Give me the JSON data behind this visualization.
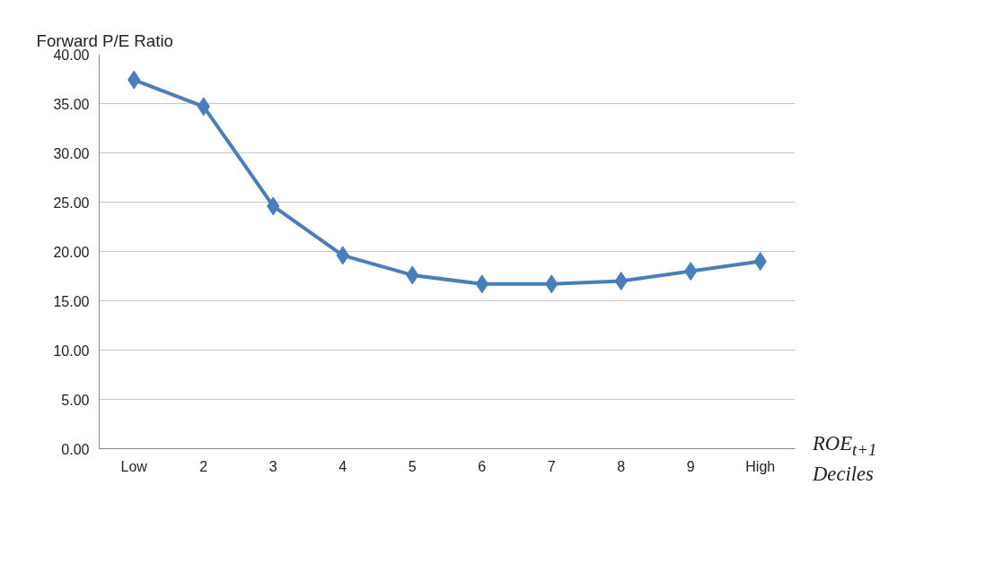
{
  "chart_data": {
    "type": "line",
    "ylabel": "Forward P/E Ratio",
    "xlabel": "ROE$_{t+1}$ Deciles",
    "categories": [
      "Low",
      "2",
      "3",
      "4",
      "5",
      "6",
      "7",
      "8",
      "9",
      "High"
    ],
    "series": [
      {
        "color": "#4a7ebb",
        "values": [
          37.4,
          34.7,
          24.6,
          19.6,
          17.6,
          16.7,
          16.7,
          17.0,
          18.0,
          19.0
        ]
      }
    ],
    "ylim": [
      0,
      40
    ],
    "yticks": [
      {
        "value": 0,
        "label": "0.00"
      },
      {
        "value": 5,
        "label": "5.00"
      },
      {
        "value": 10,
        "label": "10.00"
      },
      {
        "value": 15,
        "label": "15.00"
      },
      {
        "value": 20,
        "label": "20.00"
      },
      {
        "value": 25,
        "label": "25.00"
      },
      {
        "value": 30,
        "label": "30.00"
      },
      {
        "value": 35,
        "label": "35.00"
      },
      {
        "value": 40,
        "label": "40.00"
      }
    ],
    "grid": "y",
    "marker": "diamond",
    "line_style": "solid"
  }
}
